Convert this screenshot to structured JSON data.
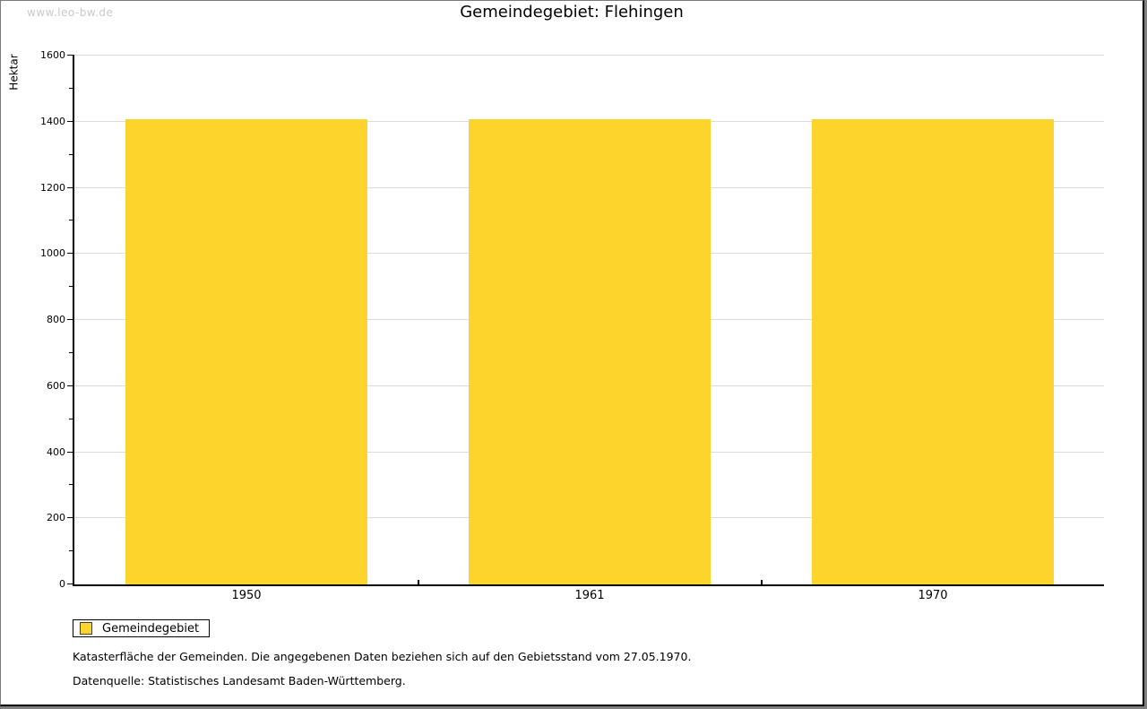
{
  "watermark": "www.leo-bw.de",
  "title": "Gemeindegebiet: Flehingen",
  "chart_data": {
    "type": "bar",
    "title": "Gemeindegebiet: Flehingen",
    "categories": [
      "1950",
      "1961",
      "1970"
    ],
    "series": [
      {
        "name": "Gemeindegebiet",
        "values": [
          1408,
          1408,
          1408
        ]
      }
    ],
    "xlabel": "",
    "ylabel": "Hektar",
    "ylim": [
      0,
      1600
    ],
    "ytick_step": 200,
    "yminor_step": 100,
    "grid": true,
    "bar_color": "#fcd42c",
    "legend_position": "bottom-left"
  },
  "legend": {
    "label": "Gemeindegebiet"
  },
  "footnotes": [
    "Katasterfläche der Gemeinden. Die angegebenen Daten beziehen sich auf den Gebietsstand vom 27.05.1970.",
    "Datenquelle: Statistisches Landesamt Baden-Württemberg."
  ],
  "colors": {
    "bar": "#fcd42c",
    "gridline": "#dcdcdc",
    "axis": "#000000",
    "watermark": "#c9c9c9",
    "frame_outer": "#808080"
  }
}
